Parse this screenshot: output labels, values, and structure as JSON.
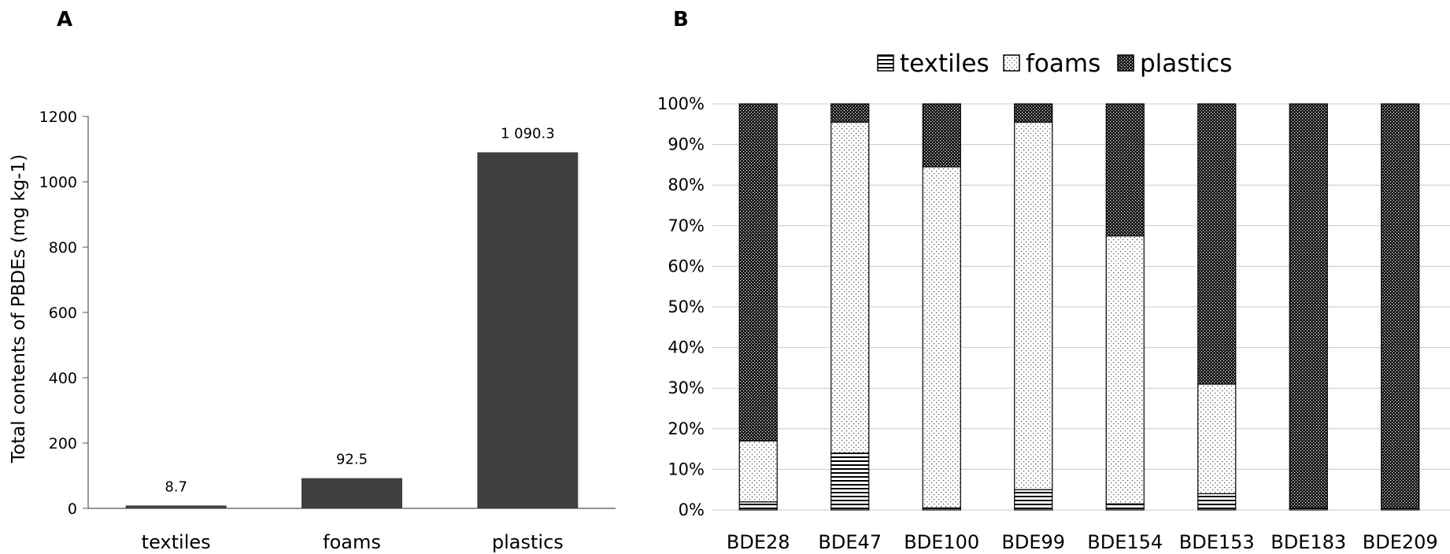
{
  "panels": {
    "a_label": "A",
    "b_label": "B"
  },
  "chart_data": [
    {
      "type": "bar",
      "categories": [
        "textiles",
        "foams",
        "plastics"
      ],
      "values": [
        8.7,
        92.5,
        1090.3
      ],
      "data_labels": [
        "8.7",
        "92.5",
        "1 090.3"
      ],
      "ylabel": "Total contents of PBDEs (mg kg-1)",
      "ylim": [
        0,
        1200
      ],
      "yticks": [
        0,
        200,
        400,
        600,
        800,
        1000,
        1200
      ],
      "bar_color": "#404040",
      "grid": false
    },
    {
      "type": "bar",
      "stacked": "percent",
      "categories": [
        "BDE28",
        "BDE47",
        "BDE100",
        "BDE99",
        "BDE154",
        "BDE153",
        "BDE183",
        "BDE209"
      ],
      "series": [
        {
          "name": "textiles",
          "pattern": "horizontal-lines",
          "values": [
            2,
            14,
            0.5,
            5,
            1.5,
            4,
            0.5,
            0.3
          ]
        },
        {
          "name": "foams",
          "pattern": "sparse-dots",
          "values": [
            15,
            81.5,
            84,
            90.5,
            66,
            27,
            0,
            0
          ]
        },
        {
          "name": "plastics",
          "pattern": "dense-dots-dark",
          "values": [
            83,
            4.5,
            15.5,
            4.5,
            32.5,
            69,
            99.5,
            99.7
          ]
        }
      ],
      "ylim": [
        0,
        100
      ],
      "yticks": [
        "0%",
        "10%",
        "20%",
        "30%",
        "40%",
        "50%",
        "60%",
        "70%",
        "80%",
        "90%",
        "100%"
      ],
      "grid": true,
      "legend_position": "top"
    }
  ]
}
